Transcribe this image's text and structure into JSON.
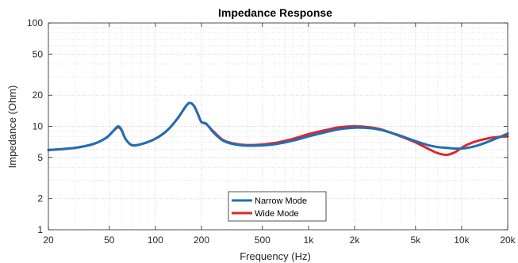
{
  "chart_data": {
    "type": "line",
    "title": "Impedance Response",
    "xlabel": "Frequency (Hz)",
    "ylabel": "Impedance (Ohm)",
    "xscale": "log",
    "yscale": "log",
    "xlim": [
      20,
      20000
    ],
    "ylim": [
      1,
      100
    ],
    "grid": true,
    "legend_position": "bottom-center",
    "x_ticks": [
      {
        "value": 20,
        "label": "20"
      },
      {
        "value": 50,
        "label": "50"
      },
      {
        "value": 100,
        "label": "100"
      },
      {
        "value": 200,
        "label": "200"
      },
      {
        "value": 500,
        "label": "500"
      },
      {
        "value": 1000,
        "label": "1k"
      },
      {
        "value": 2000,
        "label": "2k"
      },
      {
        "value": 5000,
        "label": "5k"
      },
      {
        "value": 10000,
        "label": "10k"
      },
      {
        "value": 20000,
        "label": "20k"
      }
    ],
    "y_ticks": [
      {
        "value": 1,
        "label": "1"
      },
      {
        "value": 2,
        "label": "2"
      },
      {
        "value": 5,
        "label": "5"
      },
      {
        "value": 10,
        "label": "10"
      },
      {
        "value": 20,
        "label": "20"
      },
      {
        "value": 50,
        "label": "50"
      },
      {
        "value": 100,
        "label": "100"
      }
    ],
    "series": [
      {
        "name": "Narrow Mode",
        "color": "#1f6fb4",
        "points": [
          [
            20,
            5.9
          ],
          [
            30,
            6.2
          ],
          [
            40,
            6.8
          ],
          [
            48,
            7.8
          ],
          [
            53,
            9.0
          ],
          [
            57,
            10.0
          ],
          [
            60,
            9.3
          ],
          [
            64,
            7.5
          ],
          [
            70,
            6.6
          ],
          [
            80,
            6.7
          ],
          [
            100,
            7.6
          ],
          [
            120,
            9.2
          ],
          [
            140,
            12.0
          ],
          [
            160,
            16.0
          ],
          [
            170,
            16.8
          ],
          [
            180,
            15.5
          ],
          [
            190,
            13.0
          ],
          [
            200,
            11.0
          ],
          [
            215,
            10.6
          ],
          [
            240,
            8.7
          ],
          [
            280,
            7.2
          ],
          [
            350,
            6.6
          ],
          [
            450,
            6.5
          ],
          [
            600,
            6.7
          ],
          [
            800,
            7.3
          ],
          [
            1000,
            8.0
          ],
          [
            1300,
            8.8
          ],
          [
            1600,
            9.4
          ],
          [
            2000,
            9.7
          ],
          [
            2500,
            9.6
          ],
          [
            3000,
            9.2
          ],
          [
            4000,
            8.1
          ],
          [
            5000,
            7.2
          ],
          [
            6000,
            6.6
          ],
          [
            7000,
            6.3
          ],
          [
            8000,
            6.2
          ],
          [
            9000,
            6.1
          ],
          [
            10000,
            6.1
          ],
          [
            11000,
            6.2
          ],
          [
            13000,
            6.6
          ],
          [
            16000,
            7.4
          ],
          [
            20000,
            8.5
          ]
        ]
      },
      {
        "name": "Wide Mode",
        "color": "#e0262a",
        "points": [
          [
            20,
            5.9
          ],
          [
            30,
            6.2
          ],
          [
            40,
            6.8
          ],
          [
            48,
            7.8
          ],
          [
            53,
            9.0
          ],
          [
            57,
            9.8
          ],
          [
            60,
            9.2
          ],
          [
            64,
            7.5
          ],
          [
            70,
            6.6
          ],
          [
            80,
            6.7
          ],
          [
            100,
            7.6
          ],
          [
            120,
            9.2
          ],
          [
            140,
            12.0
          ],
          [
            160,
            16.0
          ],
          [
            170,
            16.8
          ],
          [
            180,
            15.5
          ],
          [
            190,
            13.0
          ],
          [
            200,
            11.0
          ],
          [
            215,
            10.5
          ],
          [
            240,
            8.9
          ],
          [
            280,
            7.3
          ],
          [
            350,
            6.7
          ],
          [
            450,
            6.6
          ],
          [
            600,
            6.9
          ],
          [
            800,
            7.6
          ],
          [
            1000,
            8.4
          ],
          [
            1300,
            9.2
          ],
          [
            1600,
            9.8
          ],
          [
            2000,
            10.0
          ],
          [
            2500,
            9.8
          ],
          [
            3000,
            9.3
          ],
          [
            4000,
            8.0
          ],
          [
            5000,
            7.0
          ],
          [
            6000,
            6.1
          ],
          [
            7000,
            5.5
          ],
          [
            8000,
            5.3
          ],
          [
            9000,
            5.6
          ],
          [
            10000,
            6.2
          ],
          [
            11000,
            6.7
          ],
          [
            13000,
            7.3
          ],
          [
            16000,
            7.8
          ],
          [
            20000,
            8.0
          ]
        ]
      }
    ]
  }
}
